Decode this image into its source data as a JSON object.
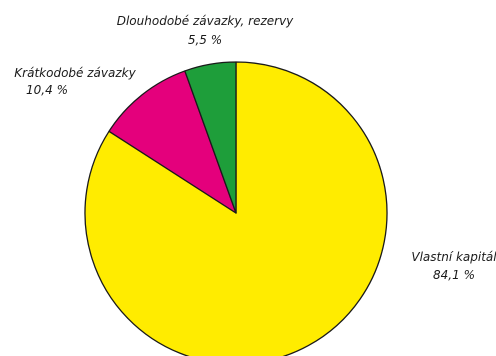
{
  "chart_data": {
    "type": "pie",
    "title": "",
    "series": [
      {
        "name": "Vlastní kapitál",
        "value": 84.1,
        "value_label": "84,1 %",
        "color": "#ffec00"
      },
      {
        "name": "Krátkodobé závazky",
        "value": 10.4,
        "value_label": "10,4 %",
        "color": "#e4007c"
      },
      {
        "name": "Dlouhodobé závazky, rezervy",
        "value": 5.5,
        "value_label": "5,5 %",
        "color": "#1e9e3a"
      }
    ],
    "start_angle": "12 o'clock",
    "direction": "clockwise",
    "outline_color": "#1a1a1a"
  }
}
